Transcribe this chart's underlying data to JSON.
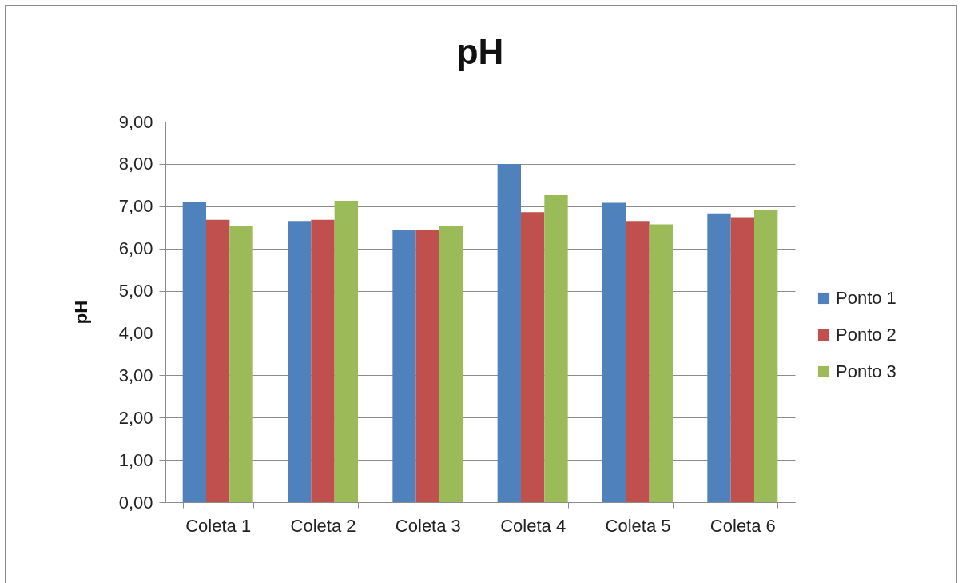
{
  "chart_data": {
    "type": "bar",
    "title": "pH",
    "ylabel": "pH",
    "categories": [
      "Coleta 1",
      "Coleta 2",
      "Coleta 3",
      "Coleta 4",
      "Coleta 5",
      "Coleta 6"
    ],
    "series": [
      {
        "name": "Ponto 1",
        "color": "#4f81bd",
        "values": [
          7.11,
          6.65,
          6.43,
          8.0,
          7.08,
          6.83
        ]
      },
      {
        "name": "Ponto 2",
        "color": "#c0504d",
        "values": [
          6.68,
          6.68,
          6.43,
          6.86,
          6.65,
          6.74
        ]
      },
      {
        "name": "Ponto 3",
        "color": "#9bbb59",
        "values": [
          6.53,
          7.13,
          6.53,
          7.26,
          6.57,
          6.92
        ]
      }
    ],
    "ylim": [
      0,
      9
    ],
    "yticks": [
      {
        "value": 0,
        "label": "0,00"
      },
      {
        "value": 1,
        "label": "1,00"
      },
      {
        "value": 2,
        "label": "2,00"
      },
      {
        "value": 3,
        "label": "3,00"
      },
      {
        "value": 4,
        "label": "4,00"
      },
      {
        "value": 5,
        "label": "5,00"
      },
      {
        "value": 6,
        "label": "6,00"
      },
      {
        "value": 7,
        "label": "7,00"
      },
      {
        "value": 8,
        "label": "8,00"
      },
      {
        "value": 9,
        "label": "9,00"
      }
    ],
    "grid": "y",
    "legend": "right"
  }
}
